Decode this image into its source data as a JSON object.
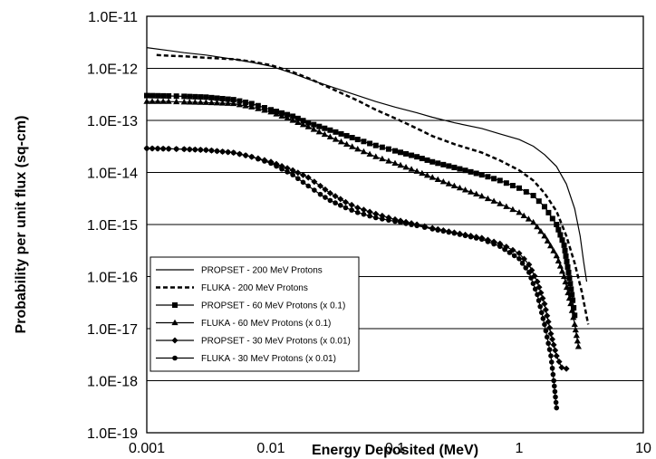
{
  "chart_data": {
    "type": "line",
    "title": "",
    "xlabel": "Energy Deposited (MeV)",
    "ylabel": "Probability per unit flux (sq-cm)",
    "x_scale": "log",
    "y_scale": "log",
    "xlim": [
      0.001,
      10
    ],
    "ylim": [
      1e-19,
      1e-11
    ],
    "x_ticks": [
      "0.001",
      "0.01",
      "0.1",
      "1",
      "10"
    ],
    "y_ticks": [
      "1.0E-11",
      "1.0E-12",
      "1.0E-13",
      "1.0E-14",
      "1.0E-15",
      "1.0E-16",
      "1.0E-17",
      "1.0E-18",
      "1.0E-19"
    ],
    "grid": "horizontal major lines",
    "legend_position": "lower-left",
    "series": [
      {
        "name": "PROPSET - 200 MeV Protons",
        "style": "solid",
        "marker": "none",
        "points": [
          [
            0.001,
            2.5e-12
          ],
          [
            0.0015,
            2.2e-12
          ],
          [
            0.002,
            2e-12
          ],
          [
            0.003,
            1.8e-12
          ],
          [
            0.005,
            1.5e-12
          ],
          [
            0.007,
            1.3e-12
          ],
          [
            0.01,
            1.1e-12
          ],
          [
            0.015,
            8e-13
          ],
          [
            0.02,
            6.2e-13
          ],
          [
            0.03,
            4.5e-13
          ],
          [
            0.05,
            3e-13
          ],
          [
            0.07,
            2.3e-13
          ],
          [
            0.1,
            1.8e-13
          ],
          [
            0.15,
            1.4e-13
          ],
          [
            0.2,
            1.15e-13
          ],
          [
            0.3,
            9e-14
          ],
          [
            0.5,
            7e-14
          ],
          [
            0.7,
            5.5e-14
          ],
          [
            1,
            4.3e-14
          ],
          [
            1.3,
            3.2e-14
          ],
          [
            1.6,
            2.2e-14
          ],
          [
            2,
            1.3e-14
          ],
          [
            2.4,
            6e-15
          ],
          [
            2.8,
            2e-15
          ],
          [
            3.1,
            6e-16
          ],
          [
            3.3,
            2e-16
          ],
          [
            3.5,
            8e-17
          ]
        ]
      },
      {
        "name": "FLUKA - 200 MeV Protons",
        "style": "dashed",
        "marker": "none",
        "points": [
          [
            0.0012,
            1.8e-12
          ],
          [
            0.0015,
            1.75e-12
          ],
          [
            0.002,
            1.7e-12
          ],
          [
            0.003,
            1.6e-12
          ],
          [
            0.005,
            1.5e-12
          ],
          [
            0.007,
            1.35e-12
          ],
          [
            0.01,
            1.15e-12
          ],
          [
            0.015,
            8.5e-13
          ],
          [
            0.02,
            6.5e-13
          ],
          [
            0.03,
            4.2e-13
          ],
          [
            0.05,
            2.4e-13
          ],
          [
            0.07,
            1.6e-13
          ],
          [
            0.1,
            1.1e-13
          ],
          [
            0.15,
            7e-14
          ],
          [
            0.2,
            5e-14
          ],
          [
            0.3,
            3.5e-14
          ],
          [
            0.5,
            2.4e-14
          ],
          [
            0.7,
            1.7e-14
          ],
          [
            1,
            1.1e-14
          ],
          [
            1.3,
            7e-15
          ],
          [
            1.6,
            4e-15
          ],
          [
            2,
            1.8e-15
          ],
          [
            2.4,
            6e-16
          ],
          [
            2.8,
            1.8e-16
          ],
          [
            3.2,
            5e-17
          ],
          [
            3.6,
            1.2e-17
          ]
        ]
      },
      {
        "name": "PROPSET - 60 MeV Protons (x 0.1)",
        "style": "solid",
        "marker": "square",
        "points": [
          [
            0.001,
            3e-13
          ],
          [
            0.0015,
            2.95e-13
          ],
          [
            0.002,
            2.9e-13
          ],
          [
            0.003,
            2.8e-13
          ],
          [
            0.005,
            2.5e-13
          ],
          [
            0.007,
            2.1e-13
          ],
          [
            0.01,
            1.6e-13
          ],
          [
            0.015,
            1.2e-13
          ],
          [
            0.02,
            9e-14
          ],
          [
            0.03,
            6.5e-14
          ],
          [
            0.05,
            4.3e-14
          ],
          [
            0.07,
            3.3e-14
          ],
          [
            0.1,
            2.6e-14
          ],
          [
            0.15,
            2e-14
          ],
          [
            0.2,
            1.6e-14
          ],
          [
            0.3,
            1.25e-14
          ],
          [
            0.5,
            9e-15
          ],
          [
            0.7,
            7e-15
          ],
          [
            1,
            5e-15
          ],
          [
            1.3,
            3.6e-15
          ],
          [
            1.6,
            2.2e-15
          ],
          [
            2,
            1e-15
          ],
          [
            2.3,
            4e-16
          ],
          [
            2.5,
            1.2e-16
          ],
          [
            2.7,
            3.5e-17
          ],
          [
            2.8,
            1.8e-17
          ]
        ]
      },
      {
        "name": "FLUKA - 60 MeV Protons (x 0.1)",
        "style": "solid",
        "marker": "triangle",
        "points": [
          [
            0.001,
            2.3e-13
          ],
          [
            0.0015,
            2.3e-13
          ],
          [
            0.002,
            2.25e-13
          ],
          [
            0.003,
            2.2e-13
          ],
          [
            0.005,
            2.1e-13
          ],
          [
            0.007,
            1.8e-13
          ],
          [
            0.01,
            1.45e-13
          ],
          [
            0.015,
            1e-13
          ],
          [
            0.02,
            7.5e-14
          ],
          [
            0.03,
            4.8e-14
          ],
          [
            0.05,
            2.8e-14
          ],
          [
            0.07,
            2e-14
          ],
          [
            0.1,
            1.5e-14
          ],
          [
            0.15,
            1.05e-14
          ],
          [
            0.2,
            8e-15
          ],
          [
            0.3,
            5.5e-15
          ],
          [
            0.5,
            3.5e-15
          ],
          [
            0.7,
            2.5e-15
          ],
          [
            1,
            1.7e-15
          ],
          [
            1.3,
            1.1e-15
          ],
          [
            1.6,
            6e-16
          ],
          [
            2,
            2.5e-16
          ],
          [
            2.3,
            1e-16
          ],
          [
            2.6,
            3e-17
          ],
          [
            2.8,
            1.2e-17
          ],
          [
            3,
            4.5e-18
          ]
        ]
      },
      {
        "name": "PROPSET - 30 MeV Protons (x 0.01)",
        "style": "solid",
        "marker": "diamond",
        "points": [
          [
            0.001,
            2.9e-14
          ],
          [
            0.0015,
            2.85e-14
          ],
          [
            0.002,
            2.8e-14
          ],
          [
            0.003,
            2.7e-14
          ],
          [
            0.005,
            2.4e-14
          ],
          [
            0.007,
            2e-14
          ],
          [
            0.01,
            1.6e-14
          ],
          [
            0.015,
            1.1e-14
          ],
          [
            0.02,
            8e-15
          ],
          [
            0.025,
            5.5e-15
          ],
          [
            0.03,
            4e-15
          ],
          [
            0.04,
            2.7e-15
          ],
          [
            0.05,
            2.1e-15
          ],
          [
            0.07,
            1.6e-15
          ],
          [
            0.1,
            1.25e-15
          ],
          [
            0.15,
            1e-15
          ],
          [
            0.2,
            8.5e-16
          ],
          [
            0.3,
            7e-16
          ],
          [
            0.5,
            5.5e-16
          ],
          [
            0.7,
            4.3e-16
          ],
          [
            1,
            2.8e-16
          ],
          [
            1.2,
            1.7e-16
          ],
          [
            1.4,
            8e-17
          ],
          [
            1.6,
            3e-17
          ],
          [
            1.8,
            8e-18
          ],
          [
            2,
            3e-18
          ],
          [
            2.2,
            1.8e-18
          ],
          [
            2.4,
            1.7e-18
          ]
        ]
      },
      {
        "name": "FLUKA - 30 MeV Protons (x 0.01)",
        "style": "solid",
        "marker": "circle",
        "points": [
          [
            0.001,
            2.9e-14
          ],
          [
            0.0015,
            2.85e-14
          ],
          [
            0.002,
            2.8e-14
          ],
          [
            0.003,
            2.7e-14
          ],
          [
            0.005,
            2.4e-14
          ],
          [
            0.007,
            2e-14
          ],
          [
            0.01,
            1.5e-14
          ],
          [
            0.015,
            9e-15
          ],
          [
            0.02,
            5.5e-15
          ],
          [
            0.025,
            3.8e-15
          ],
          [
            0.03,
            2.9e-15
          ],
          [
            0.04,
            2.1e-15
          ],
          [
            0.05,
            1.7e-15
          ],
          [
            0.07,
            1.35e-15
          ],
          [
            0.1,
            1.15e-15
          ],
          [
            0.15,
            9.5e-16
          ],
          [
            0.2,
            8.2e-16
          ],
          [
            0.3,
            6.8e-16
          ],
          [
            0.5,
            5.2e-16
          ],
          [
            0.7,
            3.8e-16
          ],
          [
            1,
            2.2e-16
          ],
          [
            1.2,
            1.2e-16
          ],
          [
            1.4,
            4.5e-17
          ],
          [
            1.6,
            1.2e-17
          ],
          [
            1.8,
            3e-18
          ],
          [
            1.9,
            1e-18
          ],
          [
            2,
            3e-19
          ]
        ]
      }
    ]
  }
}
